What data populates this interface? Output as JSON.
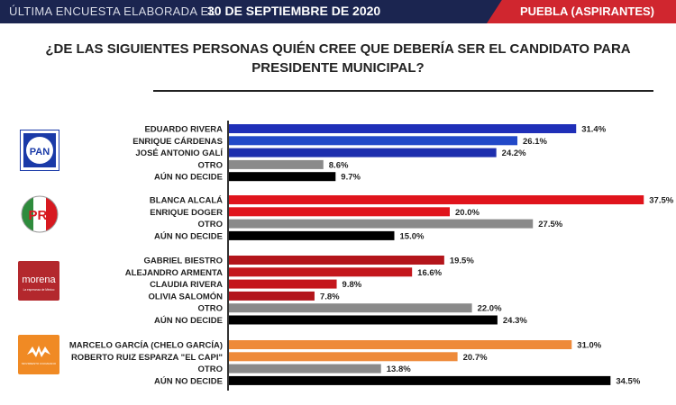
{
  "header": {
    "prefix": "ÚLTIMA ENCUESTA ELABORADA EL",
    "date": "30 DE SEPTIEMBRE DE 2020",
    "region": "PUEBLA (ASPIRANTES)"
  },
  "question": {
    "line1": "¿DE LAS SIGUIENTES PERSONAS QUIÉN CREE QUE DEBERÍA SER EL CANDIDATO PARA",
    "line2": "PRESIDENTE MUNICIPAL?"
  },
  "logos": {
    "pan": "PAN",
    "pri": "PRI",
    "morena": "morena",
    "morena_sub": "La esperanza de México",
    "mc": "MOVIMIENTO CIUDADANO"
  },
  "chart_data": {
    "type": "bar",
    "orientation": "horizontal",
    "unit": "%",
    "xlim": [
      0,
      37.5
    ],
    "groups": [
      {
        "party": "PAN",
        "categories": [
          "EDUARDO RIVERA",
          "ENRIQUE CÁRDENAS",
          "JOSÉ ANTONIO GALÍ",
          "OTRO",
          "AÚN NO DECIDE"
        ],
        "values": [
          31.4,
          26.1,
          24.2,
          8.6,
          9.7
        ],
        "labels": [
          "31.4%",
          "26.1%",
          "24.2%",
          "8.6%",
          "9.7%"
        ],
        "colors": [
          "#1f2fb8",
          "#2249c8",
          "#1d2fae",
          "#8a8a8a",
          "#000000"
        ]
      },
      {
        "party": "PRI",
        "categories": [
          "BLANCA ALCALÁ",
          "ENRIQUE DOGER",
          "OTRO",
          "AÚN NO DECIDE"
        ],
        "values": [
          37.5,
          20.0,
          27.5,
          15.0
        ],
        "labels": [
          "37.5%",
          "20.0%",
          "27.5%",
          "15.0%"
        ],
        "colors": [
          "#e0141c",
          "#e0141c",
          "#8a8a8a",
          "#000000"
        ]
      },
      {
        "party": "MORENA",
        "categories": [
          "GABRIEL BIESTRO",
          "ALEJANDRO ARMENTA",
          "CLAUDIA RIVERA",
          "OLIVIA SALOMÓN",
          "OTRO",
          "AÚN NO DECIDE"
        ],
        "values": [
          19.5,
          16.6,
          9.8,
          7.8,
          22.0,
          24.3
        ],
        "labels": [
          "19.5%",
          "16.6%",
          "9.8%",
          "7.8%",
          "22.0%",
          "24.3%"
        ],
        "colors": [
          "#b3151b",
          "#c4161c",
          "#c4161c",
          "#b3151b",
          "#8a8a8a",
          "#000000"
        ]
      },
      {
        "party": "MC",
        "categories": [
          "MARCELO GARCÍA (CHELO GARCÍA)",
          "ROBERTO RUIZ ESPARZA \"EL CAPI\"",
          "OTRO",
          "AÚN NO DECIDE"
        ],
        "values": [
          31.0,
          20.7,
          13.8,
          34.5
        ],
        "labels": [
          "31.0%",
          "20.7%",
          "13.8%",
          "34.5%"
        ],
        "colors": [
          "#ee8a3a",
          "#ee8a3a",
          "#8a8a8a",
          "#000000"
        ]
      }
    ]
  }
}
